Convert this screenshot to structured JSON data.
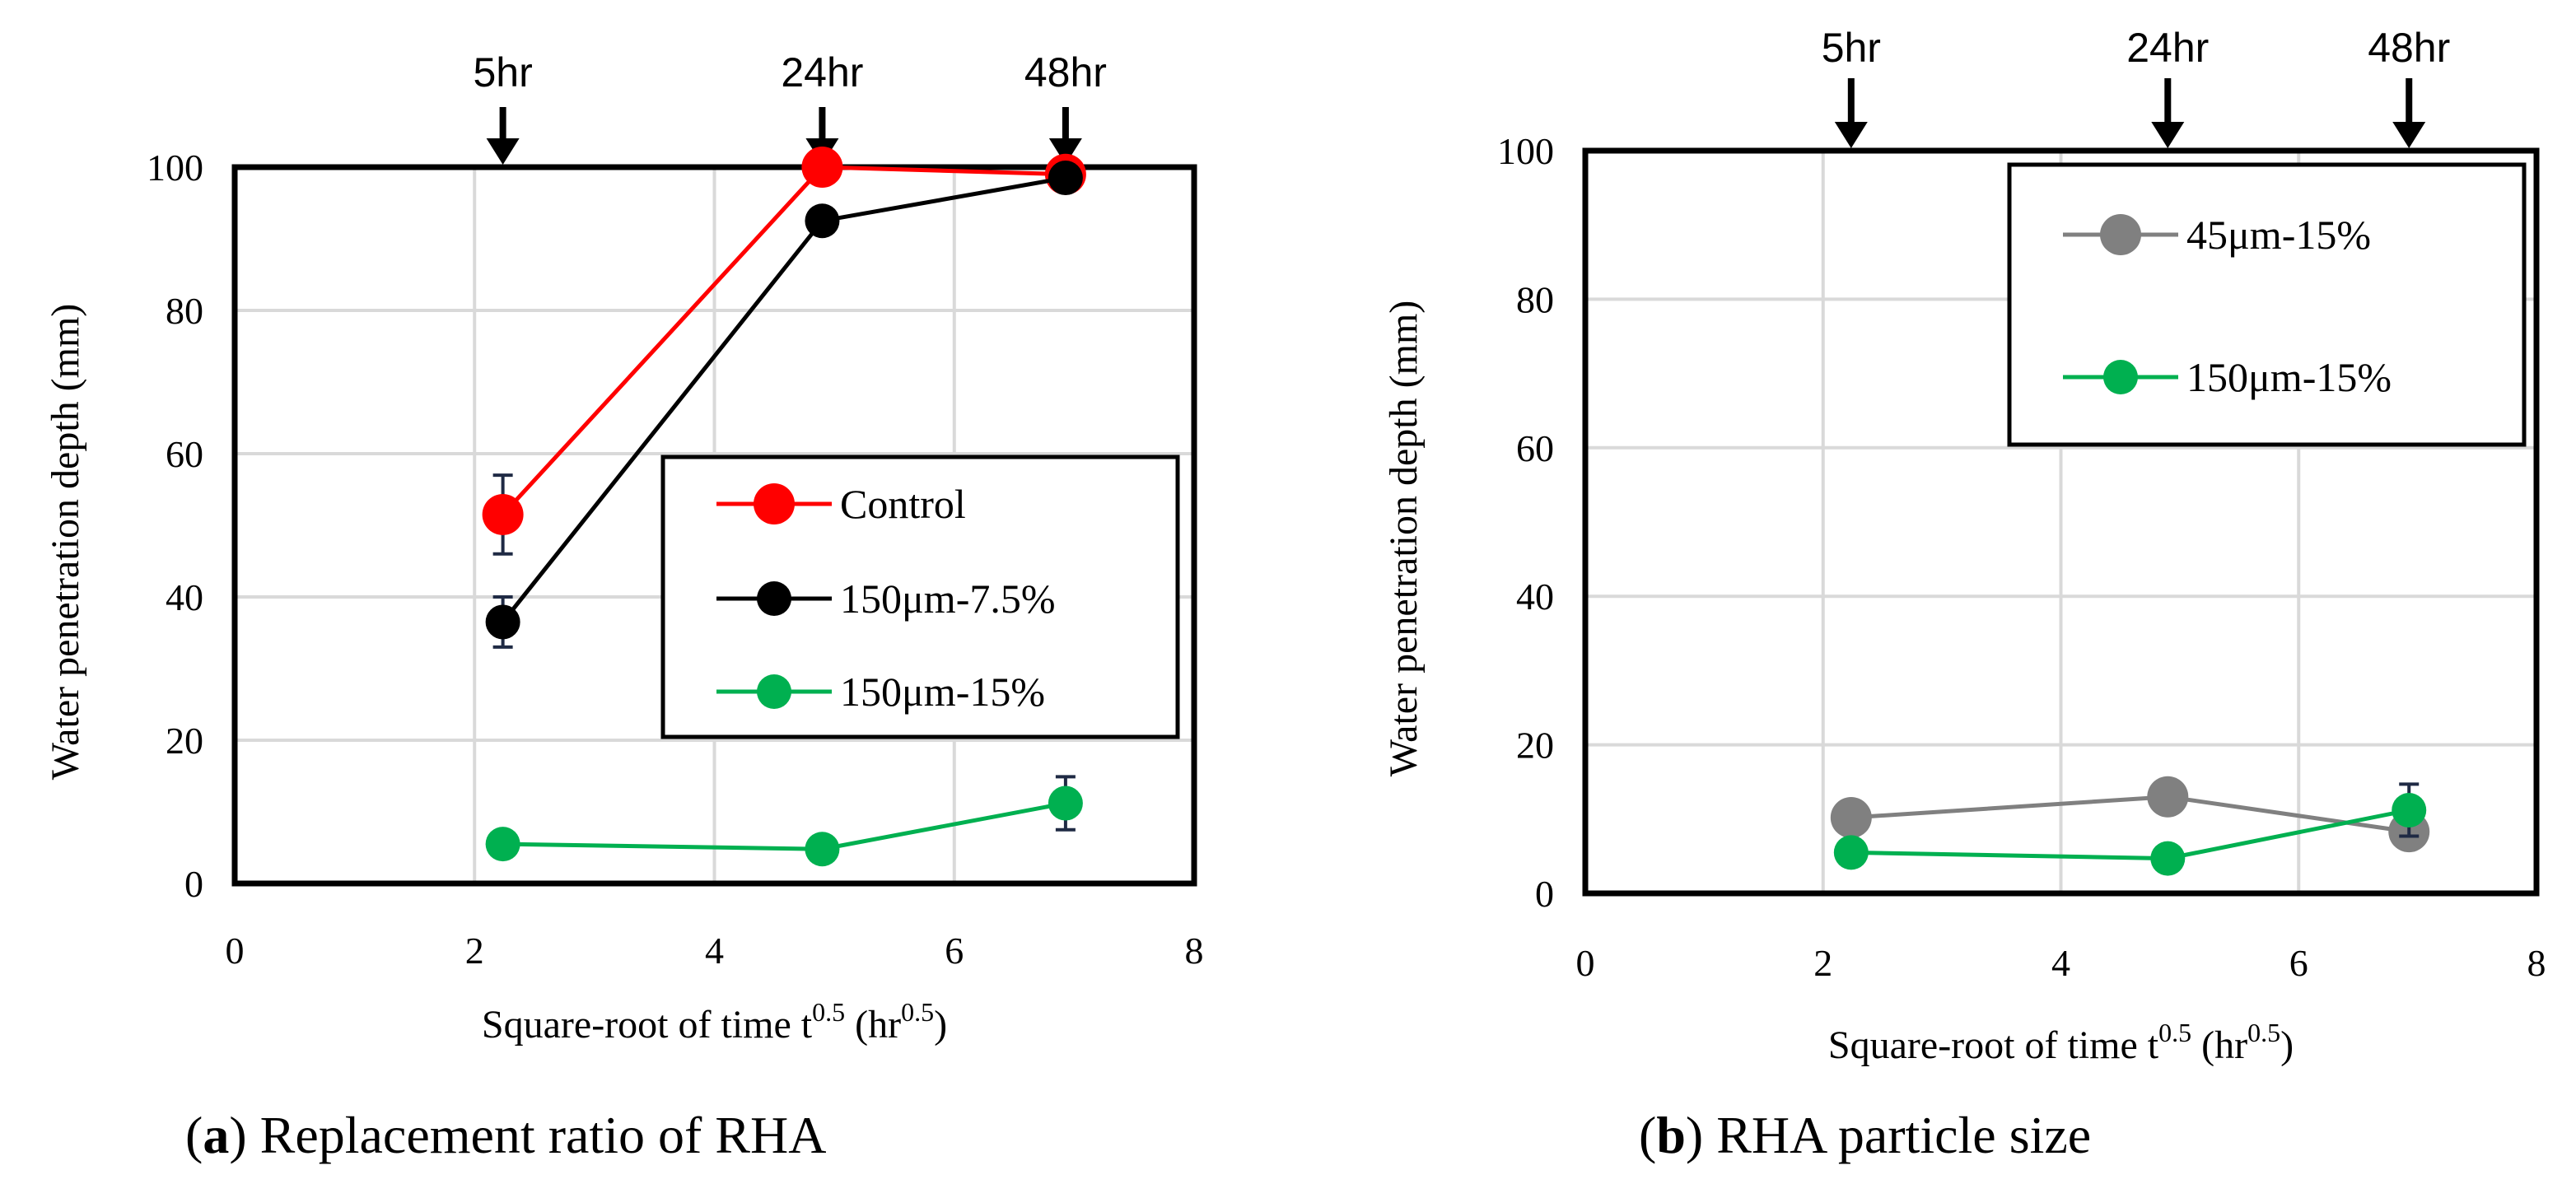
{
  "chart_data": [
    {
      "type": "line",
      "caption_letter": "a",
      "caption_text": ") Replacement ratio of RHA",
      "caption_open": "(",
      "xlabel_main": "Square-root of time t",
      "xlabel_sup": "0.5",
      "xlabel_unit": " (hr",
      "xlabel_unit_sup": "0.5",
      "xlabel_close": ")",
      "ylabel": "Water penetration depth (mm)",
      "xlim": [
        0,
        8
      ],
      "ylim": [
        0,
        100
      ],
      "xticks": [
        "0",
        "2",
        "4",
        "6",
        "8"
      ],
      "yticks": [
        "0",
        "20",
        "40",
        "60",
        "80",
        "100"
      ],
      "grid": true,
      "legend_position": "center-right",
      "time_markers": [
        {
          "label": "5hr",
          "x": 2.236
        },
        {
          "label": "24hr",
          "x": 4.899
        },
        {
          "label": "48hr",
          "x": 6.928
        }
      ],
      "series": [
        {
          "name": "Control",
          "color": "#ff0000",
          "x": [
            2.236,
            4.899,
            6.928
          ],
          "y": [
            51.5,
            100,
            99
          ],
          "error": [
            5.5,
            0,
            0
          ],
          "marker": "large"
        },
        {
          "name": "150μm-7.5%",
          "color": "#000000",
          "x": [
            2.236,
            4.899,
            6.928
          ],
          "y": [
            36.5,
            92.5,
            98.5
          ],
          "error": [
            3.5,
            0,
            0
          ],
          "marker": "medium"
        },
        {
          "name": "150μm-15%",
          "color": "#00b050",
          "x": [
            2.236,
            4.899,
            6.928
          ],
          "y": [
            5.5,
            4.8,
            11.2
          ],
          "error": [
            0,
            0,
            3.7
          ],
          "marker": "medium"
        }
      ]
    },
    {
      "type": "line",
      "caption_letter": "b",
      "caption_text": ") RHA particle size",
      "caption_open": "(",
      "xlabel_main": "Square-root of time t",
      "xlabel_sup": "0.5",
      "xlabel_unit": " (hr",
      "xlabel_unit_sup": "0.5",
      "xlabel_close": ")",
      "ylabel": "Water penetration depth (mm)",
      "xlim": [
        0,
        8
      ],
      "ylim": [
        0,
        100
      ],
      "xticks": [
        "0",
        "2",
        "4",
        "6",
        "8"
      ],
      "yticks": [
        "0",
        "20",
        "40",
        "60",
        "80",
        "100"
      ],
      "grid": true,
      "legend_position": "top-right",
      "time_markers": [
        {
          "label": "5hr",
          "x": 2.236
        },
        {
          "label": "24hr",
          "x": 4.899
        },
        {
          "label": "48hr",
          "x": 6.928
        }
      ],
      "series": [
        {
          "name": "45μm-15%",
          "color": "#808080",
          "x": [
            2.236,
            4.899,
            6.928
          ],
          "y": [
            10.2,
            13,
            8.3
          ],
          "error": [
            0,
            0,
            0
          ],
          "marker": "large"
        },
        {
          "name": "150μm-15%",
          "color": "#00b050",
          "x": [
            2.236,
            4.899,
            6.928
          ],
          "y": [
            5.5,
            4.7,
            11.2
          ],
          "error": [
            0,
            0,
            3.5
          ],
          "marker": "medium"
        }
      ]
    }
  ]
}
